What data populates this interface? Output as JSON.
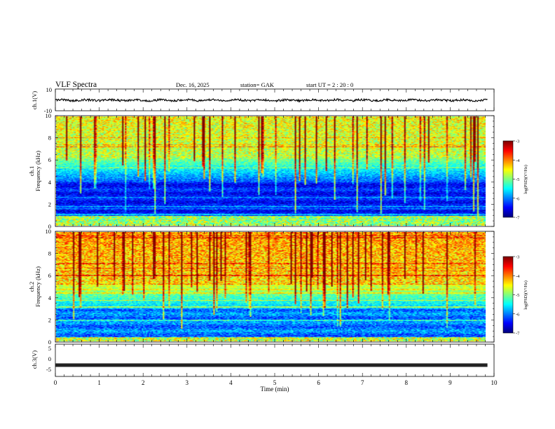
{
  "header": {
    "title": "VLF  Spectra",
    "date": "Dec. 16,  2025",
    "station": "station= GAK",
    "start_ut": "start  UT  =    2  : 20 : 0"
  },
  "chart_data": [
    {
      "type": "line",
      "name": "ch1-waveform",
      "ylabel": "ch.1(V)",
      "ylim": [
        -10,
        10
      ],
      "yticks": [
        "10",
        "-10"
      ],
      "description_values": {
        "mean": 0,
        "amplitude_approx": 1.2
      },
      "xlim": [
        0,
        10
      ]
    },
    {
      "type": "heatmap",
      "name": "ch1-spectrogram",
      "ylabel_top": "ch.1",
      "ylabel": "Frequency  (kHz)",
      "ylim": [
        0,
        10
      ],
      "yticks": [
        "0",
        "2",
        "4",
        "6",
        "8",
        "10"
      ],
      "xlim": [
        0,
        9.85
      ],
      "colorbar": {
        "label": "log(PSD)(V²/Hz)",
        "range": [
          -7,
          -3
        ],
        "ticks": [
          "-3",
          "-4",
          "-5",
          "-6",
          "-7"
        ]
      }
    },
    {
      "type": "heatmap",
      "name": "ch2-spectrogram",
      "ylabel_top": "ch.2",
      "ylabel": "Frequency  (kHz)",
      "ylim": [
        0,
        10
      ],
      "yticks": [
        "0",
        "2",
        "4",
        "6",
        "8",
        "10"
      ],
      "xlim": [
        0,
        9.85
      ],
      "colorbar": {
        "label": "log(PSD)(V²/Hz)",
        "range": [
          -7,
          -3
        ],
        "ticks": [
          "-3",
          "-4",
          "-5",
          "-6",
          "-7"
        ]
      }
    },
    {
      "type": "line",
      "name": "ch3-waveform",
      "ylabel": "ch.3(V)",
      "ylim": [
        -5,
        5
      ],
      "yticks": [
        "5",
        "0",
        "-5"
      ],
      "level": -1.5,
      "xlim": [
        0,
        10
      ]
    }
  ],
  "xaxis": {
    "label": "Time  (min)",
    "ticks": [
      "0",
      "1",
      "2",
      "3",
      "4",
      "5",
      "6",
      "7",
      "8",
      "9",
      "10"
    ],
    "range": [
      0,
      10
    ]
  }
}
